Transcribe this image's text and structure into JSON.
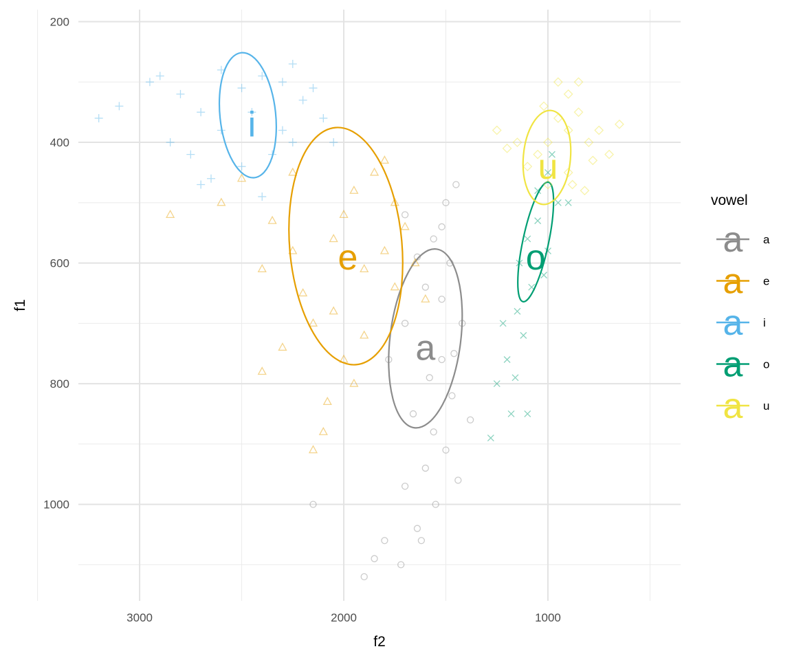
{
  "chart_data": {
    "type": "scatter",
    "title": "",
    "xlabel": "f2",
    "ylabel": "f1",
    "x_reversed": true,
    "y_reversed": true,
    "xlim": [
      3300,
      350
    ],
    "ylim": [
      180,
      1160
    ],
    "x_ticks": [
      3000,
      2000,
      1000
    ],
    "y_ticks": [
      200,
      400,
      600,
      800,
      1000
    ],
    "grid": true,
    "legend": {
      "title": "vowel",
      "position": "right",
      "key_glyph": "a"
    },
    "series": [
      {
        "name": "a",
        "color": "#8c8c8c",
        "marker": "circle",
        "label_pos": {
          "x": 1600,
          "y": 740
        },
        "ellipse": {
          "cx": 1600,
          "cy": 725,
          "rx": 165,
          "ry": 420,
          "angle": 7
        },
        "points": [
          [
            1450,
            470
          ],
          [
            1500,
            500
          ],
          [
            1520,
            540
          ],
          [
            1560,
            560
          ],
          [
            1480,
            600
          ],
          [
            1640,
            590
          ],
          [
            1700,
            520
          ],
          [
            1600,
            640
          ],
          [
            1520,
            660
          ],
          [
            1420,
            700
          ],
          [
            1700,
            700
          ],
          [
            1780,
            760
          ],
          [
            1580,
            790
          ],
          [
            1470,
            820
          ],
          [
            1380,
            860
          ],
          [
            1660,
            850
          ],
          [
            1560,
            880
          ],
          [
            1500,
            910
          ],
          [
            1600,
            940
          ],
          [
            1440,
            960
          ],
          [
            1700,
            970
          ],
          [
            1550,
            1000
          ],
          [
            1640,
            1040
          ],
          [
            1800,
            1060
          ],
          [
            1850,
            1090
          ],
          [
            1720,
            1100
          ],
          [
            1900,
            1120
          ],
          [
            1620,
            1060
          ],
          [
            1520,
            760
          ],
          [
            1460,
            750
          ]
        ]
      },
      {
        "name": "e",
        "color": "#e69f00",
        "marker": "triangle",
        "label_pos": {
          "x": 1980,
          "y": 590
        },
        "ellipse": {
          "cx": 1990,
          "cy": 572,
          "rx": 555,
          "ry": 262,
          "angle": 85
        },
        "points": [
          [
            2350,
            530
          ],
          [
            2250,
            580
          ],
          [
            2050,
            560
          ],
          [
            1900,
            610
          ],
          [
            1800,
            580
          ],
          [
            2400,
            610
          ],
          [
            2200,
            650
          ],
          [
            2150,
            700
          ],
          [
            2000,
            520
          ],
          [
            1950,
            480
          ],
          [
            1850,
            450
          ],
          [
            1750,
            500
          ],
          [
            1800,
            430
          ],
          [
            2600,
            500
          ],
          [
            2500,
            460
          ],
          [
            2050,
            680
          ],
          [
            1900,
            720
          ],
          [
            2300,
            740
          ],
          [
            2000,
            760
          ],
          [
            1950,
            800
          ],
          [
            2080,
            830
          ],
          [
            2100,
            880
          ],
          [
            2150,
            910
          ],
          [
            2850,
            520
          ],
          [
            2250,
            450
          ],
          [
            1700,
            540
          ],
          [
            1650,
            600
          ],
          [
            1750,
            640
          ],
          [
            1600,
            660
          ],
          [
            2400,
            780
          ]
        ]
      },
      {
        "name": "i",
        "color": "#56b4e9",
        "marker": "plus",
        "label_pos": {
          "x": 2450,
          "y": 370
        },
        "ellipse": {
          "cx": 2470,
          "cy": 355,
          "rx": 130,
          "ry": 293,
          "angle": -6
        },
        "points": [
          [
            2900,
            290
          ],
          [
            2800,
            320
          ],
          [
            2700,
            350
          ],
          [
            2600,
            380
          ],
          [
            2500,
            310
          ],
          [
            2400,
            290
          ],
          [
            2300,
            300
          ],
          [
            2200,
            330
          ],
          [
            2100,
            360
          ],
          [
            2050,
            400
          ],
          [
            2350,
            420
          ],
          [
            2500,
            440
          ],
          [
            2650,
            460
          ],
          [
            2750,
            420
          ],
          [
            2850,
            400
          ],
          [
            2950,
            300
          ],
          [
            3100,
            340
          ],
          [
            3200,
            360
          ],
          [
            2450,
            350
          ],
          [
            2300,
            380
          ],
          [
            2150,
            310
          ],
          [
            2250,
            270
          ],
          [
            2600,
            280
          ],
          [
            2700,
            470
          ],
          [
            2400,
            490
          ],
          [
            2250,
            400
          ]
        ]
      },
      {
        "name": "o",
        "color": "#009e73",
        "marker": "x",
        "label_pos": {
          "x": 1060,
          "y": 590
        },
        "ellipse": {
          "cx": 1060,
          "cy": 565,
          "rx": 60,
          "ry": 285,
          "angle": 12
        },
        "points": [
          [
            1000,
            450
          ],
          [
            950,
            500
          ],
          [
            1050,
            530
          ],
          [
            1100,
            560
          ],
          [
            1020,
            620
          ],
          [
            1080,
            640
          ],
          [
            1150,
            680
          ],
          [
            1120,
            720
          ],
          [
            1200,
            760
          ],
          [
            1250,
            800
          ],
          [
            1180,
            850
          ],
          [
            1000,
            580
          ],
          [
            900,
            500
          ],
          [
            1050,
            480
          ],
          [
            1140,
            600
          ],
          [
            1220,
            700
          ],
          [
            1160,
            790
          ],
          [
            1280,
            890
          ],
          [
            1100,
            850
          ],
          [
            980,
            420
          ]
        ]
      },
      {
        "name": "u",
        "color": "#f0e442",
        "marker": "diamond",
        "label_pos": {
          "x": 1000,
          "y": 440
        },
        "ellipse": {
          "cx": 1005,
          "cy": 425,
          "rx": 110,
          "ry": 220,
          "angle": 5
        },
        "points": [
          [
            1000,
            400
          ],
          [
            950,
            360
          ],
          [
            900,
            380
          ],
          [
            850,
            350
          ],
          [
            800,
            400
          ],
          [
            780,
            430
          ],
          [
            1050,
            420
          ],
          [
            1100,
            440
          ],
          [
            1150,
            400
          ],
          [
            900,
            320
          ],
          [
            850,
            300
          ],
          [
            950,
            300
          ],
          [
            1000,
            470
          ],
          [
            900,
            450
          ],
          [
            750,
            380
          ],
          [
            700,
            420
          ],
          [
            1200,
            410
          ],
          [
            1250,
            380
          ],
          [
            880,
            470
          ],
          [
            820,
            480
          ],
          [
            1020,
            340
          ],
          [
            650,
            370
          ]
        ]
      }
    ],
    "extra_points": [
      {
        "series": "a",
        "x": 2150,
        "y": 1000
      }
    ]
  }
}
